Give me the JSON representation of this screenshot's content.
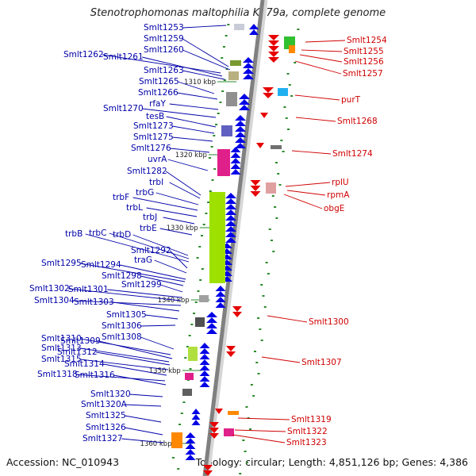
{
  "title": "Stenotrophomonas maltophilia K279a, complete genome",
  "accession": "Accession: NC_010943",
  "summary": "Topology: circular; Length: 4,851,126 bp; Genes: 4,386",
  "ruler_labels": [
    "1310 kbp",
    "1320 kbp",
    "1330 kbp",
    "1340 kbp",
    "1350 kbp",
    "1360 kbp"
  ],
  "left_genes": [
    "Smlt1253",
    "Smlt1259",
    "Smlt1260",
    "Smlt1262",
    "Smlt1261",
    "Smlt1263",
    "Smlt1265",
    "Smlt1266",
    "rfaY",
    "Smlt1270",
    "tesB",
    "Smlt1273",
    "Smlt1275",
    "Smlt1276",
    "uvrA",
    "Smlt1282",
    "trbI",
    "trbG",
    "trbF",
    "trbL",
    "trbJ",
    "trbE",
    "trbB",
    "trbC",
    "trbD",
    "Smlt1292",
    "traG",
    "Smlt1295",
    "Smlt1294",
    "Smlt1298",
    "Smlt1299",
    "Smlt1302",
    "Smlt1301",
    "Smlt1304",
    "Smlt1303",
    "Smlt1305",
    "Smlt1306",
    "Smlt1308",
    "Smlt1310",
    "Smlt1309",
    "Smlt1313",
    "Smlt1312",
    "Smlt1315",
    "Smlt1314",
    "Smlt1318",
    "Smlt1316",
    "Smlt1320",
    "Smlt1320A",
    "Smlt1325",
    "Smlt1326",
    "Smlt1327"
  ],
  "right_genes": [
    "Smlt1254",
    "Smlt1255",
    "Smlt1256",
    "Smlt1257",
    "purT",
    "Smlt1268",
    "Smlt1274",
    "rplU",
    "rpmA",
    "obgE",
    "Smlt1300",
    "Smlt1307",
    "Smlt1319",
    "Smlt1322",
    "Smlt1323"
  ],
  "colors": {
    "forward_strand": "#0000e6",
    "reverse_strand": "#e60000",
    "left_label": "#0000a8",
    "right_label": "#d00000",
    "tick": "#2a8a2a"
  }
}
